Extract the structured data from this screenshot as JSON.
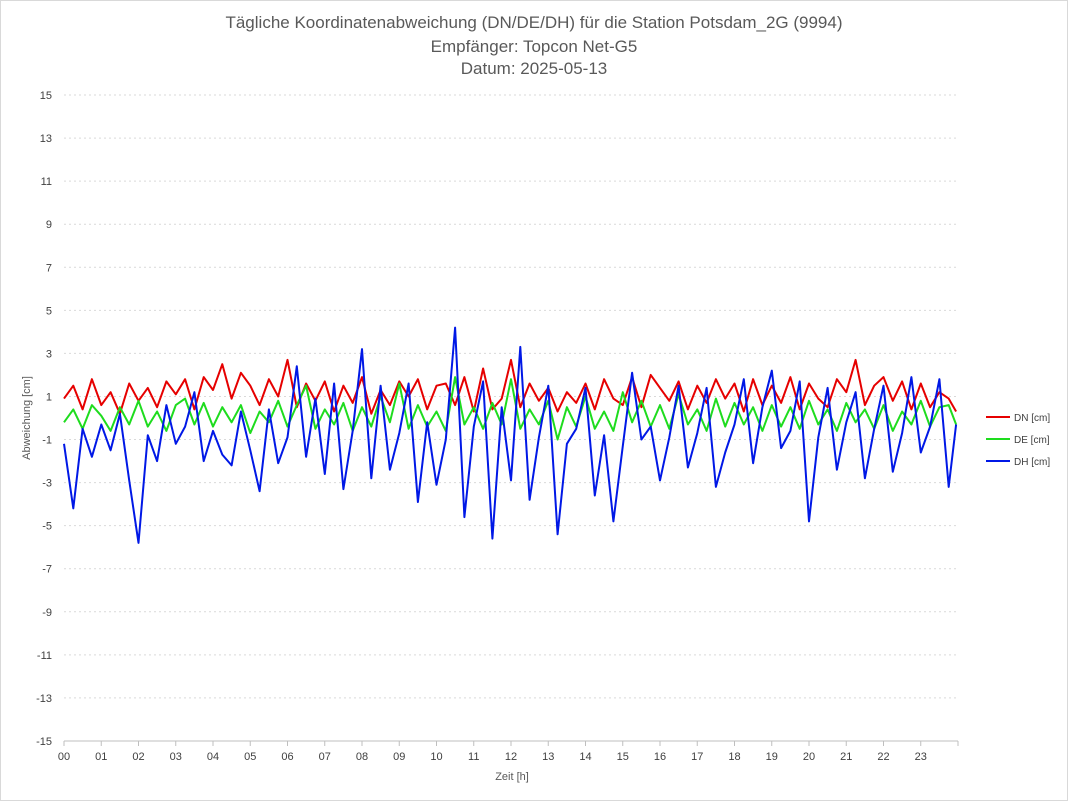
{
  "chart_data": {
    "type": "line",
    "title": "Tägliche Koordinatenabweichung (DN/DE/DH) für die Station Potsdam_2G (9994)",
    "subtitle1": "Empfänger: Topcon Net-G5",
    "subtitle2": "Datum: 2025-05-13",
    "xlabel": "Zeit [h]",
    "ylabel": "Abweichung [cm]",
    "xlim": [
      0,
      24
    ],
    "ylim": [
      -15,
      15
    ],
    "xticks": [
      "00",
      "01",
      "02",
      "03",
      "04",
      "05",
      "06",
      "07",
      "08",
      "09",
      "10",
      "11",
      "12",
      "13",
      "14",
      "15",
      "16",
      "17",
      "18",
      "19",
      "20",
      "21",
      "22",
      "23"
    ],
    "yticks": [
      15,
      13,
      11,
      9,
      7,
      5,
      3,
      1,
      -1,
      -3,
      -5,
      -7,
      -9,
      -11,
      -13,
      -15
    ],
    "grid": true,
    "legend_position": "right",
    "x": [
      0,
      0.25,
      0.5,
      0.75,
      1,
      1.25,
      1.5,
      1.75,
      2,
      2.25,
      2.5,
      2.75,
      3,
      3.25,
      3.5,
      3.75,
      4,
      4.25,
      4.5,
      4.75,
      5,
      5.25,
      5.5,
      5.75,
      6,
      6.25,
      6.5,
      6.75,
      7,
      7.25,
      7.5,
      7.75,
      8,
      8.25,
      8.5,
      8.75,
      9,
      9.25,
      9.5,
      9.75,
      10,
      10.25,
      10.5,
      10.75,
      11,
      11.25,
      11.5,
      11.75,
      12,
      12.25,
      12.5,
      12.75,
      13,
      13.25,
      13.5,
      13.75,
      14,
      14.25,
      14.5,
      14.75,
      15,
      15.25,
      15.5,
      15.75,
      16,
      16.25,
      16.5,
      16.75,
      17,
      17.25,
      17.5,
      17.75,
      18,
      18.25,
      18.5,
      18.75,
      19,
      19.25,
      19.5,
      19.75,
      20,
      20.25,
      20.5,
      20.75,
      21,
      21.25,
      21.5,
      21.75,
      22,
      22.25,
      22.5,
      22.75,
      23,
      23.25,
      23.5,
      23.75,
      23.95
    ],
    "series": [
      {
        "name": "DN [cm]",
        "color": "#e60000",
        "values": [
          0.9,
          1.5,
          0.4,
          1.8,
          0.6,
          1.2,
          0.2,
          1.6,
          0.8,
          1.4,
          0.5,
          1.7,
          1.1,
          1.8,
          0.4,
          1.9,
          1.3,
          2.5,
          0.9,
          2.1,
          1.5,
          0.6,
          1.8,
          1.0,
          2.7,
          0.5,
          1.6,
          0.8,
          1.7,
          0.3,
          1.5,
          0.7,
          1.9,
          0.2,
          1.3,
          0.6,
          1.7,
          1.0,
          1.8,
          0.4,
          1.5,
          1.6,
          0.6,
          1.9,
          0.3,
          2.3,
          0.4,
          0.9,
          2.7,
          0.5,
          1.6,
          0.8,
          1.4,
          0.3,
          1.2,
          0.7,
          1.6,
          0.4,
          1.8,
          0.9,
          0.6,
          1.9,
          0.5,
          2.0,
          1.4,
          0.8,
          1.7,
          0.4,
          1.5,
          0.7,
          1.8,
          0.9,
          1.6,
          0.3,
          1.8,
          0.6,
          1.5,
          0.7,
          1.9,
          0.4,
          1.6,
          0.9,
          0.5,
          1.8,
          1.2,
          2.7,
          0.6,
          1.5,
          1.9,
          0.8,
          1.7,
          0.4,
          1.6,
          0.5,
          1.2,
          0.9,
          0.3
        ]
      },
      {
        "name": "DE [cm]",
        "color": "#1edc1e",
        "values": [
          -0.2,
          0.4,
          -0.5,
          0.6,
          0.1,
          -0.6,
          0.5,
          -0.3,
          0.8,
          -0.4,
          0.3,
          -0.6,
          0.6,
          0.9,
          -0.3,
          0.7,
          -0.4,
          0.5,
          -0.2,
          0.6,
          -0.7,
          0.3,
          -0.2,
          0.8,
          -0.4,
          0.6,
          1.5,
          -0.5,
          0.4,
          -0.3,
          0.7,
          -0.6,
          0.5,
          -0.4,
          1.0,
          -0.2,
          1.6,
          -0.5,
          0.6,
          -0.4,
          0.3,
          -0.6,
          1.9,
          -0.3,
          0.5,
          -0.5,
          0.7,
          -0.3,
          1.8,
          -0.5,
          0.4,
          -0.3,
          0.8,
          -1.0,
          0.5,
          -0.4,
          1.0,
          -0.5,
          0.3,
          -0.6,
          1.2,
          -0.2,
          0.8,
          -0.4,
          0.6,
          -0.5,
          1.1,
          -0.3,
          0.4,
          -0.6,
          0.9,
          -0.4,
          0.7,
          -0.3,
          0.5,
          -0.6,
          0.6,
          -0.4,
          0.5,
          -0.5,
          0.8,
          -0.3,
          0.4,
          -0.6,
          0.7,
          -0.2,
          0.4,
          -0.5,
          0.6,
          -0.6,
          0.3,
          -0.3,
          0.8,
          -0.4,
          0.5,
          0.6,
          -0.3
        ]
      },
      {
        "name": "DH [cm]",
        "color": "#0018e6",
        "values": [
          -1.2,
          -4.2,
          -0.5,
          -1.8,
          -0.3,
          -1.5,
          0.2,
          -2.9,
          -5.8,
          -0.8,
          -2.0,
          0.6,
          -1.2,
          -0.4,
          1.2,
          -2.0,
          -0.6,
          -1.7,
          -2.2,
          0.3,
          -1.5,
          -3.4,
          0.4,
          -2.1,
          -0.9,
          2.4,
          -1.8,
          0.9,
          -2.6,
          1.6,
          -3.3,
          -0.6,
          3.2,
          -2.8,
          1.5,
          -2.4,
          -0.7,
          1.6,
          -3.9,
          -0.2,
          -3.1,
          -1.0,
          4.2,
          -4.6,
          -0.4,
          1.7,
          -5.6,
          0.5,
          -2.9,
          3.3,
          -3.8,
          -0.9,
          1.5,
          -5.4,
          -1.2,
          -0.5,
          1.4,
          -3.6,
          -0.8,
          -4.8,
          -1.3,
          2.1,
          -1.0,
          -0.4,
          -2.9,
          -0.9,
          1.5,
          -2.3,
          -0.7,
          1.4,
          -3.2,
          -1.6,
          -0.3,
          1.8,
          -2.1,
          0.5,
          2.2,
          -1.4,
          -0.6,
          1.7,
          -4.8,
          -0.9,
          1.4,
          -2.4,
          -0.2,
          1.2,
          -2.8,
          -0.5,
          1.5,
          -2.5,
          -0.7,
          1.9,
          -1.6,
          -0.4,
          1.8,
          -3.2,
          -0.3
        ]
      }
    ]
  }
}
